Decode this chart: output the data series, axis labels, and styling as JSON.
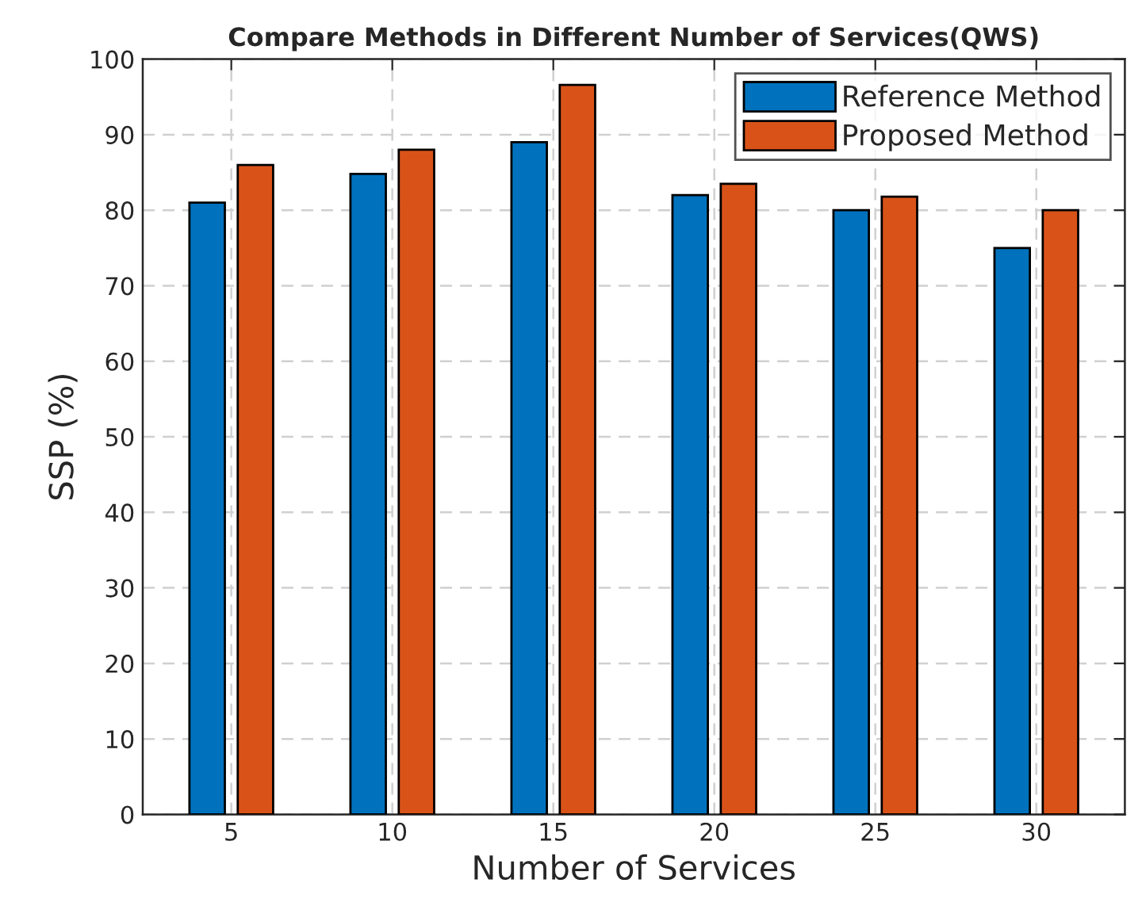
{
  "chart_data": {
    "type": "bar",
    "title": "Compare Methods in Different Number of Services(QWS)",
    "xlabel": "Number of Services",
    "ylabel": "SSP (%)",
    "categories": [
      "5",
      "10",
      "15",
      "20",
      "25",
      "30"
    ],
    "series": [
      {
        "name": "Reference Method",
        "color": "#0072bd",
        "values": [
          81,
          84.8,
          89,
          82,
          80,
          75
        ]
      },
      {
        "name": "Proposed Method",
        "color": "#d95319",
        "values": [
          86,
          88,
          96.6,
          83.5,
          81.8,
          80
        ]
      }
    ],
    "ylim": [
      0,
      100
    ],
    "yticks": [
      0,
      10,
      20,
      30,
      40,
      50,
      60,
      70,
      80,
      90,
      100
    ],
    "grid": true,
    "legend": "top right"
  }
}
